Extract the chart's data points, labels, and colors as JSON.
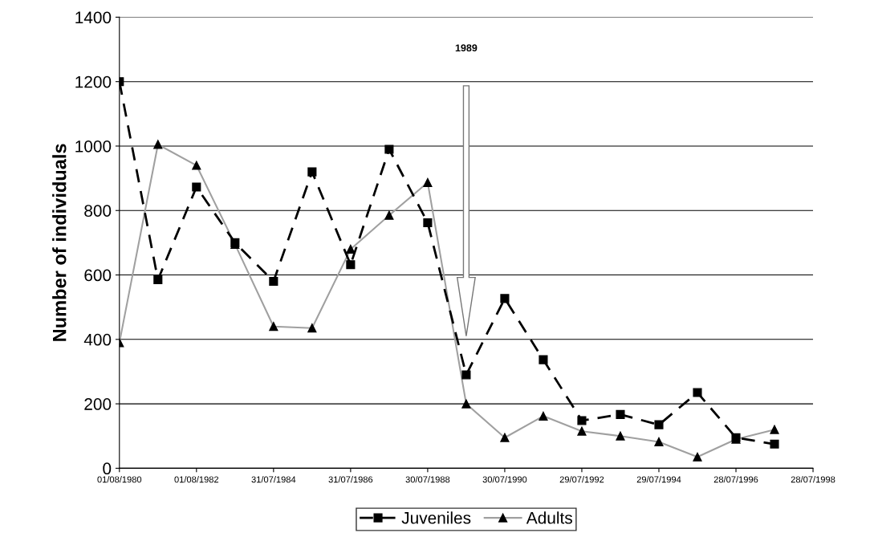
{
  "chart_data": {
    "type": "line",
    "ylabel": "Number of individuals",
    "x": [
      "1980-08-01",
      "1981-08-01",
      "1982-08-01",
      "1983-08-01",
      "1984-07-31",
      "1985-07-31",
      "1986-07-31",
      "1987-07-31",
      "1988-07-30",
      "1989-07-30",
      "1990-07-30",
      "1991-07-30",
      "1992-07-29",
      "1993-07-29",
      "1994-07-29",
      "1995-07-29",
      "1996-07-28",
      "1997-07-28"
    ],
    "series": [
      {
        "name": "Juveniles",
        "color": "#000000",
        "marker": "square",
        "line_style": "dashed",
        "values": [
          1200,
          585,
          873,
          700,
          580,
          920,
          632,
          990,
          762,
          290,
          527,
          337,
          148,
          167,
          135,
          235,
          95,
          75
        ]
      },
      {
        "name": "Adults",
        "color": "#a0a0a0",
        "marker": "triangle",
        "line_style": "solid",
        "values": [
          390,
          1005,
          940,
          695,
          440,
          435,
          680,
          785,
          887,
          200,
          95,
          162,
          115,
          100,
          82,
          35,
          90,
          120
        ]
      }
    ],
    "annotations": [
      "1989"
    ],
    "xlim": [
      "1980-08-01",
      "1998-07-28"
    ],
    "xticks": [
      {
        "value": "1980-08-01",
        "label": "01/08/1980"
      },
      {
        "value": "1982-08-01",
        "label": "01/08/1982"
      },
      {
        "value": "1984-07-31",
        "label": "31/07/1984"
      },
      {
        "value": "1986-07-31",
        "label": "31/07/1986"
      },
      {
        "value": "1988-07-30",
        "label": "30/07/1988"
      },
      {
        "value": "1990-07-30",
        "label": "30/07/1990"
      },
      {
        "value": "1992-07-29",
        "label": "29/07/1992"
      },
      {
        "value": "1994-07-29",
        "label": "29/07/1994"
      },
      {
        "value": "1996-07-28",
        "label": "28/07/1996"
      },
      {
        "value": "1998-07-28",
        "label": "28/07/1998"
      }
    ],
    "ylim": [
      0,
      1400
    ],
    "yticks": [
      0,
      200,
      400,
      600,
      800,
      1000,
      1200,
      1400
    ],
    "grid": "y",
    "legend": "bottom"
  }
}
